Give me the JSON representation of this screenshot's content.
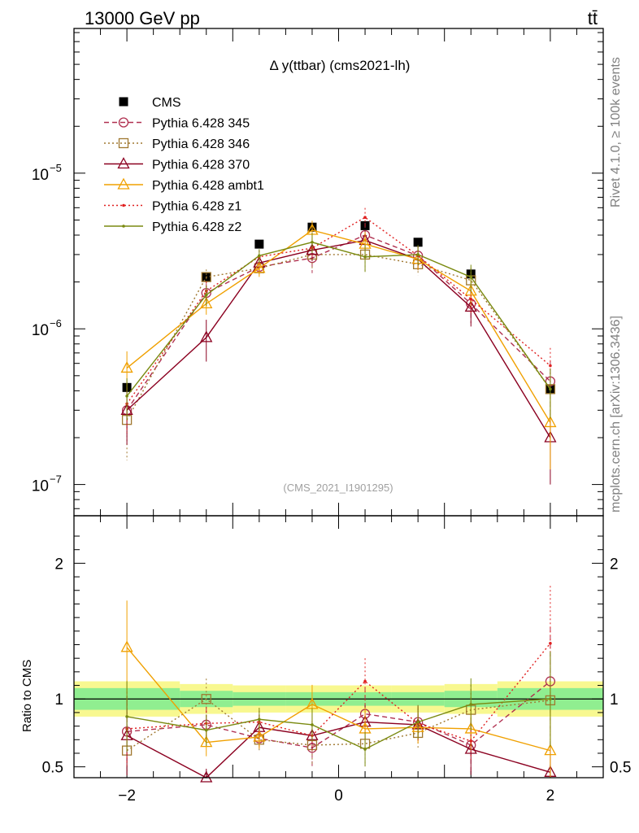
{
  "header": {
    "energy_label": "13000 GeV pp",
    "process_label": "tt̄",
    "side_label_top": "Rivet 4.1.0, ≥ 100k events",
    "side_label_bottom": "mcplots.cern.ch [arXiv:1306.3436]"
  },
  "chart_data": [
    {
      "type": "line",
      "panel": "main",
      "title": "Δ y(ttbar) (cms2021-lh)",
      "watermark": "(CMS_2021_I1901295)",
      "xlabel": "",
      "ylabel": "",
      "yscale": "log",
      "xlim": [
        -2.5,
        2.5
      ],
      "ylim": [
        6.3e-08,
        8.5e-05
      ],
      "x_ticks": [
        -2,
        0,
        2
      ],
      "x_tick_labels": [
        "−2",
        "0",
        "2"
      ],
      "y_tick_labels": [
        {
          "value": 1e-05,
          "base": "10",
          "exp": "−5"
        },
        {
          "value": 1e-06,
          "base": "10",
          "exp": "−6"
        },
        {
          "value": 1e-07,
          "base": "10",
          "exp": "−7"
        }
      ],
      "x": [
        -2,
        -1.25,
        -0.75,
        -0.25,
        0.25,
        0.75,
        1.25,
        2
      ],
      "legend_position": "top-left",
      "series": [
        {
          "name": "CMS",
          "color": "#000000",
          "marker": "square-filled",
          "line": "none",
          "values": [
            4.2e-07,
            2.15e-06,
            3.5e-06,
            4.5e-06,
            4.6e-06,
            3.6e-06,
            2.25e-06,
            4.1e-07
          ]
        },
        {
          "name": "Pythia 6.428 345",
          "color": "#b03050",
          "marker": "circle-open",
          "line": "dashed",
          "values": [
            3e-07,
            1.7e-06,
            2.5e-06,
            2.85e-06,
            4e-06,
            2.95e-06,
            1.45e-06,
            4.6e-07
          ],
          "err_rel": [
            0.3,
            0.15,
            0.1,
            0.2,
            0.2,
            0.15,
            0.25,
            0.35
          ]
        },
        {
          "name": "Pythia 6.428 346",
          "color": "#a07830",
          "marker": "square-open",
          "line": "dotted",
          "values": [
            2.6e-07,
            2.15e-06,
            2.45e-06,
            3e-06,
            3e-06,
            2.6e-06,
            2.05e-06,
            4.1e-07
          ],
          "err_rel": [
            0.45,
            0.12,
            0.12,
            0.2,
            0.22,
            0.15,
            0.2,
            0.35
          ]
        },
        {
          "name": "Pythia 6.428 370",
          "color": "#8b0020",
          "marker": "triangle-open",
          "line": "solid",
          "values": [
            3e-07,
            8.8e-07,
            2.65e-06,
            3.2e-06,
            3.7e-06,
            2.8e-06,
            1.38e-06,
            2e-07
          ],
          "err_rel": [
            0.4,
            0.3,
            0.12,
            0.15,
            0.15,
            0.15,
            0.25,
            0.5
          ]
        },
        {
          "name": "Pythia 6.428 ambt1",
          "color": "#f0a000",
          "marker": "triangle-open",
          "line": "solid",
          "values": [
            5.6e-07,
            1.45e-06,
            2.45e-06,
            4.3e-06,
            3.5e-06,
            2.8e-06,
            1.75e-06,
            2.5e-07
          ],
          "err_rel": [
            0.28,
            0.15,
            0.12,
            0.15,
            0.2,
            0.15,
            0.2,
            0.5
          ]
        },
        {
          "name": "Pythia 6.428 z1",
          "color": "#e02020",
          "marker": "dot",
          "line": "dotted",
          "values": [
            3.3e-07,
            1.75e-06,
            2.9e-06,
            3.3e-06,
            5.2e-06,
            2.95e-06,
            1.55e-06,
            5.8e-07
          ],
          "err_rel": [
            0.35,
            0.15,
            0.1,
            0.15,
            0.15,
            0.15,
            0.2,
            0.3
          ]
        },
        {
          "name": "Pythia 6.428 z2",
          "color": "#7a8a10",
          "marker": "dot",
          "line": "solid",
          "values": [
            3.7e-07,
            1.65e-06,
            2.95e-06,
            3.6e-06,
            2.9e-06,
            3e-06,
            2.15e-06,
            4.1e-07
          ],
          "err_rel": [
            0.3,
            0.15,
            0.1,
            0.15,
            0.2,
            0.15,
            0.2,
            0.35
          ]
        }
      ]
    },
    {
      "type": "line",
      "panel": "ratio",
      "ylabel": "Ratio to CMS",
      "xlim": [
        -2.5,
        2.5
      ],
      "ylim": [
        0.42,
        2.35
      ],
      "y_ticks": [
        0.5,
        1,
        2
      ],
      "y_tick_labels": [
        "0.5",
        "1",
        "2"
      ],
      "x_ticks": [
        -2,
        0,
        2
      ],
      "x_tick_labels": [
        "−2",
        "0",
        "2"
      ],
      "x": [
        -2,
        -1.25,
        -0.75,
        -0.25,
        0.25,
        0.75,
        1.25,
        2
      ],
      "bin_edges": [
        -2.5,
        -1.5,
        -1.0,
        -0.5,
        0.0,
        0.5,
        1.0,
        1.5,
        2.5
      ],
      "band_inner": [
        [
          0.92,
          1.08
        ],
        [
          0.94,
          1.06
        ],
        [
          0.95,
          1.05
        ],
        [
          0.95,
          1.05
        ],
        [
          0.95,
          1.05
        ],
        [
          0.95,
          1.05
        ],
        [
          0.94,
          1.06
        ],
        [
          0.92,
          1.08
        ]
      ],
      "band_outer": [
        [
          0.87,
          1.13
        ],
        [
          0.89,
          1.11
        ],
        [
          0.9,
          1.1
        ],
        [
          0.9,
          1.1
        ],
        [
          0.9,
          1.1
        ],
        [
          0.9,
          1.1
        ],
        [
          0.89,
          1.11
        ],
        [
          0.87,
          1.13
        ]
      ],
      "series": [
        {
          "name": "Pythia 6.428 345",
          "color": "#b03050",
          "line": "dashed",
          "marker": "circle-open",
          "values": [
            0.76,
            0.81,
            0.71,
            0.64,
            0.89,
            0.83,
            0.66,
            1.13
          ],
          "err_rel": [
            0.3,
            0.15,
            0.12,
            0.22,
            0.22,
            0.15,
            0.3,
            0.35
          ]
        },
        {
          "name": "Pythia 6.428 346",
          "color": "#a07830",
          "line": "dotted",
          "marker": "square-open",
          "values": [
            0.62,
            1.0,
            0.7,
            0.66,
            0.67,
            0.75,
            0.92,
            0.99
          ],
          "err_rel": [
            0.45,
            0.15,
            0.12,
            0.22,
            0.25,
            0.15,
            0.2,
            0.35
          ]
        },
        {
          "name": "Pythia 6.428 370",
          "color": "#8b0020",
          "line": "solid",
          "marker": "triangle-open",
          "values": [
            0.73,
            0.36,
            0.79,
            0.73,
            0.83,
            0.81,
            0.63,
            0.46
          ],
          "err_rel": [
            0.4,
            0.35,
            0.12,
            0.15,
            0.15,
            0.15,
            0.3,
            0.5
          ]
        },
        {
          "name": "Pythia 6.428 ambt1",
          "color": "#f0a000",
          "line": "solid",
          "marker": "triangle-open",
          "values": [
            1.38,
            0.68,
            0.72,
            0.96,
            0.78,
            0.79,
            0.78,
            0.62
          ],
          "err_rel": [
            0.25,
            0.15,
            0.12,
            0.15,
            0.2,
            0.15,
            0.2,
            0.5
          ]
        },
        {
          "name": "Pythia 6.428 z1",
          "color": "#e02020",
          "line": "dotted",
          "marker": "dot",
          "values": [
            0.78,
            0.82,
            0.83,
            0.73,
            1.13,
            0.82,
            0.69,
            1.41
          ],
          "err_rel": [
            0.35,
            0.15,
            0.1,
            0.15,
            0.15,
            0.15,
            0.2,
            0.3
          ]
        },
        {
          "name": "Pythia 6.428 z2",
          "color": "#7a8a10",
          "line": "solid",
          "marker": "dot",
          "values": [
            0.87,
            0.77,
            0.85,
            0.81,
            0.63,
            0.83,
            0.96,
            1.0
          ],
          "err_rel": [
            0.3,
            0.15,
            0.1,
            0.15,
            0.2,
            0.15,
            0.2,
            0.35
          ]
        }
      ]
    }
  ]
}
